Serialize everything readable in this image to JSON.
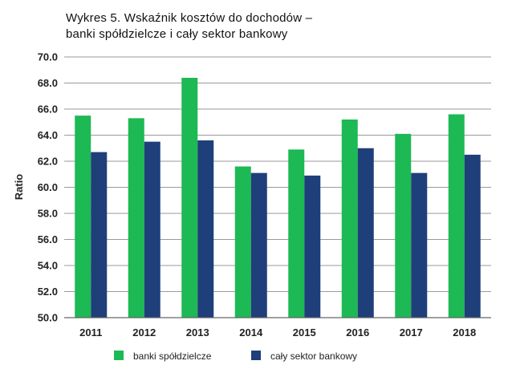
{
  "chart_data": {
    "type": "bar",
    "title_line1": "Wykres 5. Wskaźnik kosztów do dochodów –",
    "title_line2": "banki spółdzielcze i cały sektor bankowy",
    "ylabel": "Ratio",
    "xlabel": "",
    "ylim": [
      50.0,
      70.0
    ],
    "yticks": [
      "50.0",
      "52.0",
      "54.0",
      "56.0",
      "58.0",
      "60.0",
      "62.0",
      "64.0",
      "66.0",
      "68.0",
      "70.0"
    ],
    "categories": [
      "2011",
      "2012",
      "2013",
      "2014",
      "2015",
      "2016",
      "2017",
      "2018"
    ],
    "series": [
      {
        "name": "banki spółdzielcze",
        "color": "#1db954",
        "values": [
          65.5,
          65.3,
          68.4,
          61.6,
          62.9,
          65.2,
          64.1,
          65.6
        ]
      },
      {
        "name": "cały sektor bankowy",
        "color": "#1f3f7a",
        "values": [
          62.7,
          63.5,
          63.6,
          61.1,
          60.9,
          63.0,
          61.1,
          62.5
        ]
      }
    ],
    "grid": true,
    "legend_position": "bottom"
  }
}
